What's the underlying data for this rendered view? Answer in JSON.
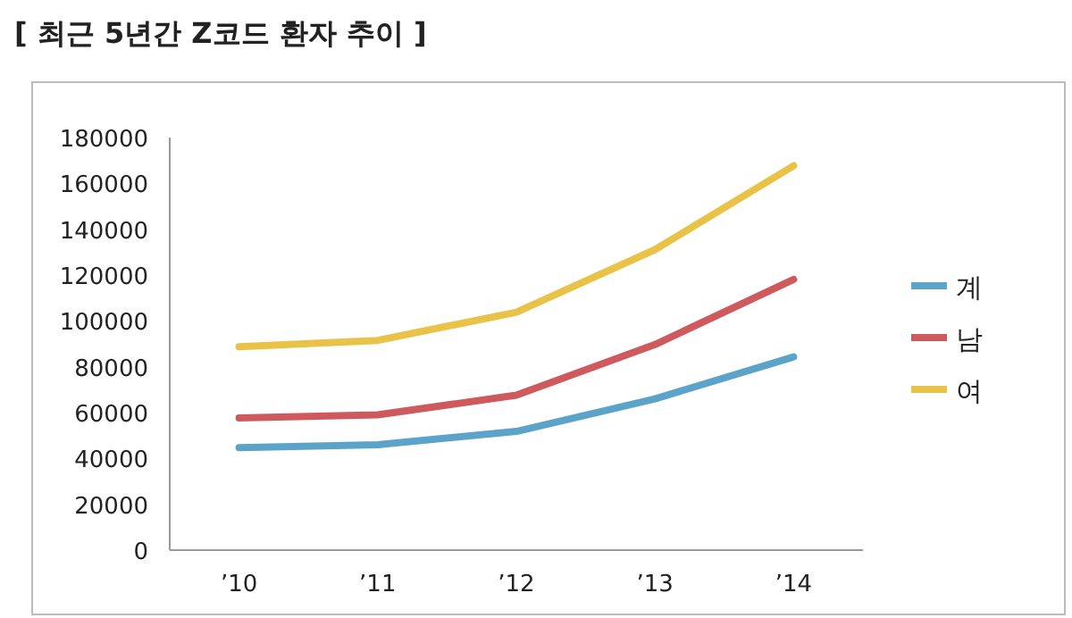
{
  "chart_data": {
    "type": "line",
    "title": "[ 최근 5년간 Z코드 환자 추이 ]",
    "categories": [
      "’10",
      "’11",
      "’12",
      "’13",
      "’14"
    ],
    "series": [
      {
        "name": "계",
        "color": "#5ba3c9",
        "values": [
          44700,
          46000,
          51800,
          66000,
          84300
        ]
      },
      {
        "name": "남",
        "color": "#cf5a5e",
        "values": [
          57700,
          59000,
          67600,
          89700,
          118100
        ]
      },
      {
        "name": "여",
        "color": "#e9c347",
        "values": [
          88700,
          91500,
          103800,
          131100,
          167700
        ]
      }
    ],
    "ylim": [
      0,
      180000
    ],
    "yticks": [
      0,
      20000,
      40000,
      60000,
      80000,
      100000,
      120000,
      140000,
      160000,
      180000
    ],
    "legend": "right",
    "grid": false,
    "marker": "none",
    "line_style": "solid"
  }
}
